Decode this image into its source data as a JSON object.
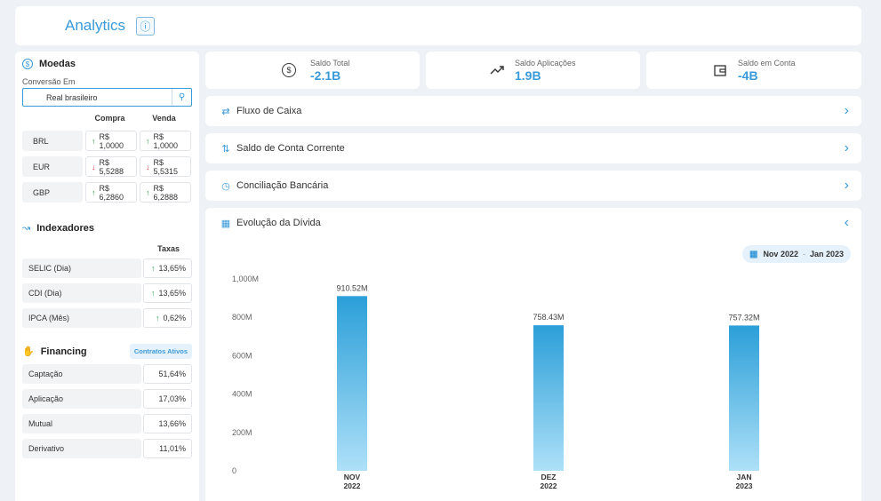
{
  "header": {
    "title": "Analytics",
    "info_icon": "info-icon"
  },
  "moedas": {
    "title": "Moedas",
    "conversion_label": "Conversão Em",
    "conversion_value": "Real brasileiro",
    "col_compra": "Compra",
    "col_venda": "Venda",
    "rows": [
      {
        "name": "BRL",
        "compra": "R$ 1,0000",
        "compra_dir": "up",
        "venda": "R$ 1,0000",
        "venda_dir": "up"
      },
      {
        "name": "EUR",
        "compra": "R$ 5,5288",
        "compra_dir": "down",
        "venda": "R$ 5,5315",
        "venda_dir": "down"
      },
      {
        "name": "GBP",
        "compra": "R$ 6,2860",
        "compra_dir": "up",
        "venda": "R$ 6,2888",
        "venda_dir": "up"
      }
    ]
  },
  "indexadores": {
    "title": "Indexadores",
    "col_taxas": "Taxas",
    "rows": [
      {
        "name": "SELIC (Dia)",
        "value": "13,65%"
      },
      {
        "name": "CDI (Dia)",
        "value": "13,65%"
      },
      {
        "name": "IPCA (Mês)",
        "value": "0,62%"
      }
    ]
  },
  "financing": {
    "title": "Financing",
    "badge": "Contratos Ativos",
    "rows": [
      {
        "name": "Captação",
        "value": "51,64%"
      },
      {
        "name": "Aplicação",
        "value": "17,03%"
      },
      {
        "name": "Mutual",
        "value": "13,66%"
      },
      {
        "name": "Derivativo",
        "value": "11,01%"
      }
    ]
  },
  "kpis": [
    {
      "label": "Saldo Total",
      "value": "-2.1B",
      "icon": "dollar-circle-icon"
    },
    {
      "label": "Saldo Aplicações",
      "value": "1.9B",
      "icon": "trending-up-icon"
    },
    {
      "label": "Saldo em Conta",
      "value": "-4B",
      "icon": "wallet-icon"
    }
  ],
  "accordions": [
    {
      "label": "Fluxo de Caixa",
      "icon": "cash-flow-icon"
    },
    {
      "label": "Saldo de Conta Corrente",
      "icon": "transfer-icon"
    },
    {
      "label": "Conciliação Bancária",
      "icon": "reconcile-icon"
    }
  ],
  "evolucao": {
    "title": "Evolução da Dívida",
    "date_from": "Nov 2022",
    "date_sep": "-",
    "date_to": "Jan 2023"
  },
  "chart_data": {
    "type": "bar",
    "categories": [
      [
        "NOV",
        "2022"
      ],
      [
        "DEZ",
        "2022"
      ],
      [
        "JAN",
        "2023"
      ]
    ],
    "values": [
      910.52,
      758.43,
      757.32
    ],
    "value_labels": [
      "910.52M",
      "758.43M",
      "757.32M"
    ],
    "y_ticks": [
      0,
      200,
      400,
      600,
      800,
      1000
    ],
    "y_tick_labels": [
      "0",
      "200M",
      "400M",
      "600M",
      "800M",
      "1,000M"
    ],
    "ylim": [
      0,
      1000
    ],
    "title": "",
    "xlabel": "",
    "ylabel": "",
    "grid": false,
    "colors": {
      "bar_top": "#2b9fd8",
      "bar_bottom": "#aee0f8"
    }
  }
}
